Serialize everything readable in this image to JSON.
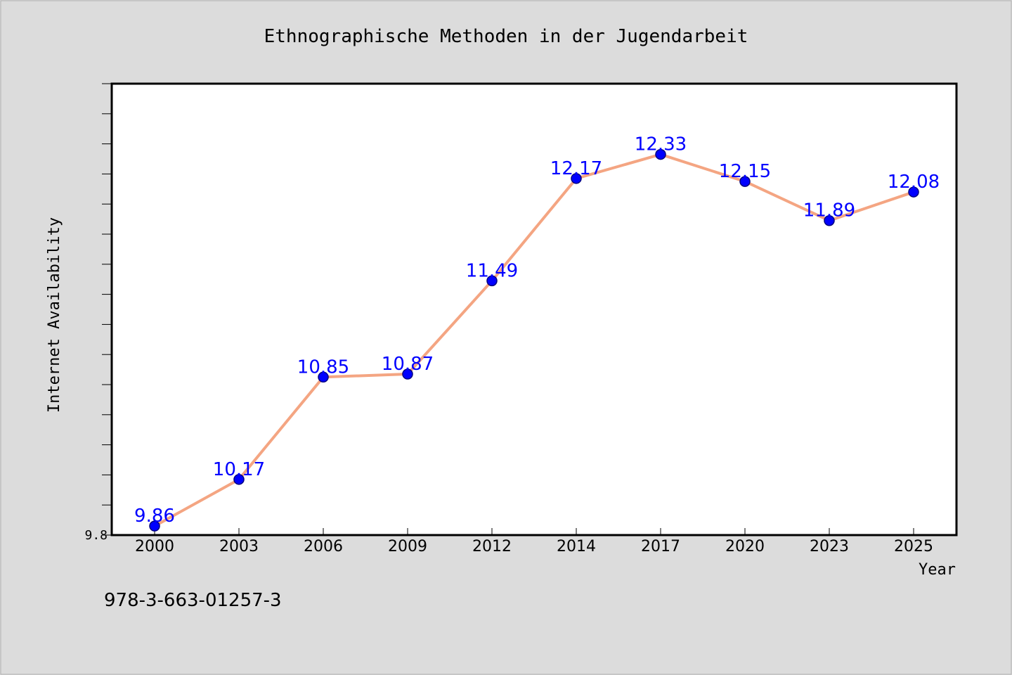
{
  "chart_data": {
    "type": "line",
    "title": "Ethnographische Methoden in der Jugendarbeit",
    "xlabel": "Year",
    "ylabel": "Internet Availability",
    "categories": [
      "2000",
      "2003",
      "2006",
      "2009",
      "2012",
      "2014",
      "2017",
      "2020",
      "2023",
      "2025"
    ],
    "series": [
      {
        "values": [
          9.86,
          10.17,
          10.85,
          10.87,
          11.49,
          12.17,
          12.33,
          12.15,
          11.89,
          12.08
        ],
        "data_labels": [
          "9.86",
          "10.17",
          "10.85",
          "10.87",
          "11.49",
          "12.17",
          "12.33",
          "12.15",
          "11.89",
          "12.08"
        ]
      }
    ],
    "ylim": [
      9.8,
      12.8
    ],
    "y_tick_labels": [
      {
        "value": 9.8,
        "label": "9.8"
      }
    ],
    "y_minor_tick_step": 0.2,
    "grid": false,
    "legend": "none",
    "colors": {
      "line": "#f4a582",
      "marker_fill": "#0000ff",
      "marker_edge": "#000080",
      "data_label": "#0000ff",
      "background": "#dcdcdc",
      "plot_background": "#ffffff"
    }
  },
  "footer_text": "978-3-663-01257-3"
}
